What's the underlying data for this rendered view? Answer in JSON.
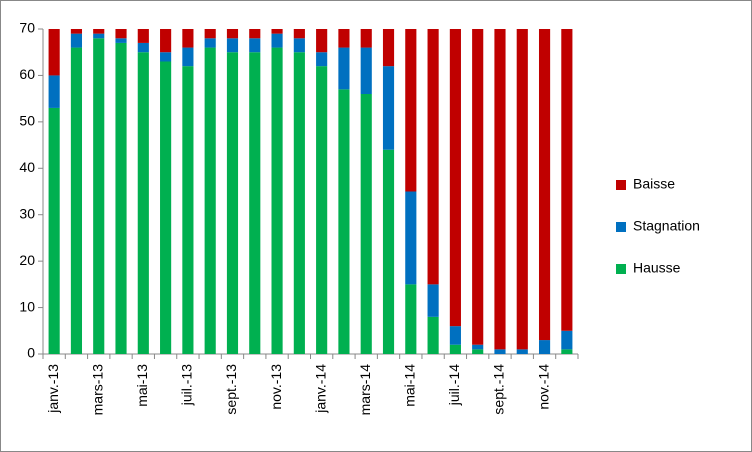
{
  "chart_data": {
    "type": "stacked_bar",
    "categories": [
      "janv.-13",
      null,
      "mars-13",
      null,
      "mai-13",
      null,
      "juil.-13",
      null,
      "sept.-13",
      null,
      "nov.-13",
      null,
      "janv.-14",
      null,
      "mars-14",
      null,
      "mai-14",
      null,
      "juil.-14",
      null,
      "sept.-14",
      null,
      "nov.-14",
      null
    ],
    "series": [
      {
        "name": "Hausse",
        "color": "#00b050",
        "values": [
          53,
          66,
          68,
          67,
          65,
          63,
          62,
          66,
          65,
          65,
          66,
          65,
          62,
          57,
          56,
          44,
          15,
          8,
          2,
          1,
          0,
          0,
          0,
          1
        ]
      },
      {
        "name": "Stagnation",
        "color": "#0070c0",
        "values": [
          7,
          3,
          1,
          1,
          2,
          2,
          4,
          2,
          3,
          3,
          3,
          3,
          3,
          9,
          10,
          18,
          20,
          7,
          4,
          1,
          1,
          1,
          3,
          4
        ]
      },
      {
        "name": "Baisse",
        "color": "#c00000",
        "values": [
          10,
          1,
          1,
          2,
          3,
          5,
          4,
          2,
          2,
          2,
          1,
          2,
          5,
          4,
          4,
          8,
          35,
          55,
          64,
          68,
          69,
          69,
          67,
          65
        ]
      }
    ],
    "ylim": [
      0,
      70
    ],
    "yticks": [
      0,
      10,
      20,
      30,
      40,
      50,
      60,
      70
    ],
    "grid": false,
    "legend": "right"
  }
}
